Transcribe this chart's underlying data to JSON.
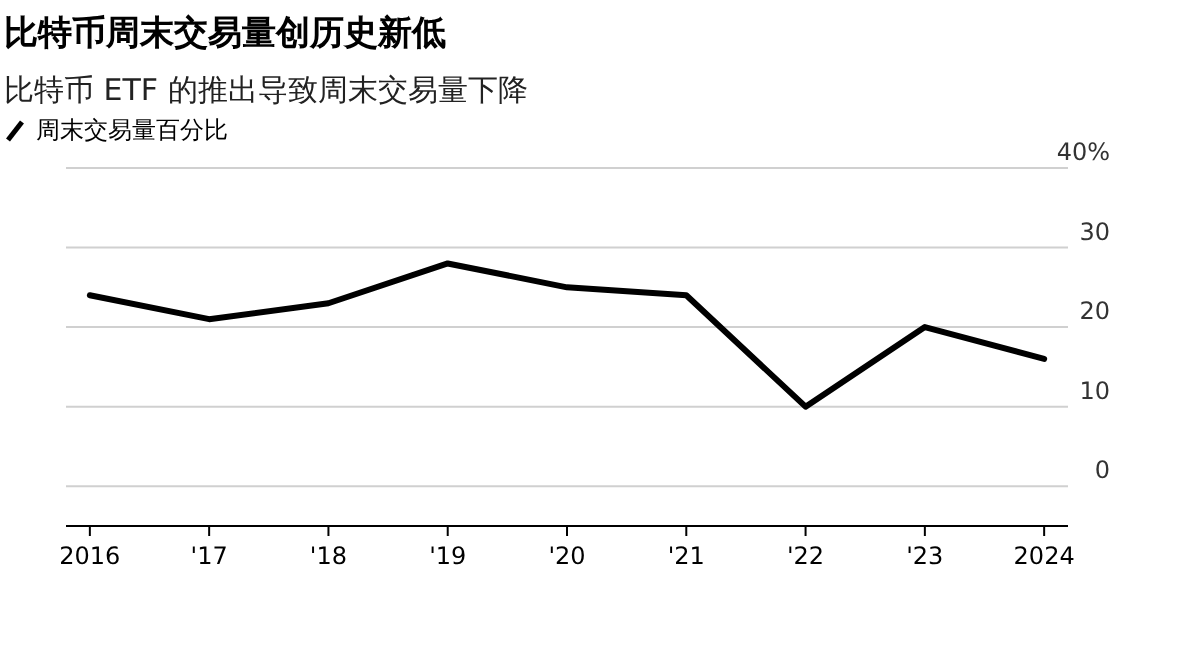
{
  "chart_data": {
    "type": "line",
    "title": "比特币周末交易量创历史新低",
    "subtitle": "比特币 ETF 的推出导致周末交易量下降",
    "x": [
      2016,
      2017,
      2018,
      2019,
      2020,
      2021,
      2022,
      2023,
      2024
    ],
    "series": [
      {
        "name": "周末交易量百分比",
        "color": "#000000",
        "values": [
          24,
          21,
          23,
          28,
          25,
          24,
          10,
          20,
          16
        ]
      }
    ],
    "xlim": [
      2015.8,
      2024.2
    ],
    "xticks": [
      {
        "value": 2016,
        "label": "2016"
      },
      {
        "value": 2017,
        "label": "'17"
      },
      {
        "value": 2018,
        "label": "'18"
      },
      {
        "value": 2019,
        "label": "'19"
      },
      {
        "value": 2020,
        "label": "'20"
      },
      {
        "value": 2021,
        "label": "'21"
      },
      {
        "value": 2022,
        "label": "'22"
      },
      {
        "value": 2023,
        "label": "'23"
      },
      {
        "value": 2024,
        "label": "2024"
      }
    ],
    "ylim": [
      -5,
      40
    ],
    "yticks": [
      0,
      10,
      20,
      30,
      {
        "value": 40,
        "label": "40%"
      }
    ],
    "grid": "y",
    "legend": "top left",
    "marker": "none",
    "line_style": "solid"
  }
}
